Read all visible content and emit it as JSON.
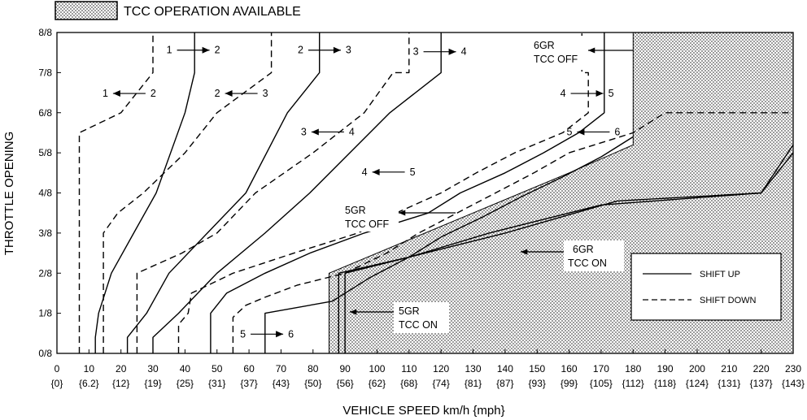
{
  "chart_data": {
    "type": "line",
    "title": "",
    "header_legend": "TCC OPERATION AVAILABLE",
    "xlabel": "VEHICLE SPEED  km/h {mph}",
    "ylabel": "THROTTLE OPENING",
    "xlim": [
      0,
      230
    ],
    "ylim": [
      0,
      1
    ],
    "x_ticks": [
      0,
      10,
      20,
      30,
      40,
      50,
      60,
      70,
      80,
      90,
      100,
      110,
      120,
      130,
      140,
      150,
      160,
      170,
      180,
      190,
      200,
      210,
      220,
      230
    ],
    "x_tick_labels": [
      "0",
      "10",
      "20",
      "30",
      "40",
      "50",
      "60",
      "70",
      "80",
      "90",
      "100",
      "110",
      "120",
      "130",
      "140",
      "150",
      "160",
      "170",
      "180",
      "190",
      "200",
      "210",
      "220",
      "230"
    ],
    "x_tick_mph": [
      "{0}",
      "{6.2}",
      "{12}",
      "{19}",
      "{25}",
      "{31}",
      "{37}",
      "{43}",
      "{50}",
      "{56}",
      "{62}",
      "{68}",
      "{74}",
      "{81}",
      "{87}",
      "{93}",
      "{99}",
      "{105}",
      "{112}",
      "{118}",
      "{124}",
      "{131}",
      "{137}",
      "{143}"
    ],
    "y_ticks": [
      0,
      0.125,
      0.25,
      0.375,
      0.5,
      0.625,
      0.75,
      0.875,
      1
    ],
    "y_tick_labels": [
      "0/8",
      "1/8",
      "2/8",
      "3/8",
      "4/8",
      "5/8",
      "6/8",
      "7/8",
      "8/8"
    ],
    "legend": {
      "position": "bottom-right",
      "entries": [
        {
          "label": "SHIFT UP",
          "style": "solid"
        },
        {
          "label": "SHIFT DOWN",
          "style": "dashed"
        }
      ]
    },
    "series": [
      {
        "label": "1-2 up",
        "style": "solid",
        "points": [
          [
            12,
            0
          ],
          [
            12,
            0.05
          ],
          [
            13,
            0.125
          ],
          [
            17,
            0.25
          ],
          [
            24,
            0.375
          ],
          [
            31,
            0.5
          ],
          [
            40,
            0.75
          ],
          [
            43,
            0.875
          ],
          [
            43,
            1
          ]
        ]
      },
      {
        "label": "2-1 down",
        "style": "dashed",
        "points": [
          [
            7,
            0
          ],
          [
            7,
            0.6875
          ],
          [
            20,
            0.75
          ],
          [
            30,
            0.875
          ],
          [
            30,
            1
          ]
        ]
      },
      {
        "label": "2-3 up",
        "style": "solid",
        "points": [
          [
            22,
            0
          ],
          [
            22,
            0.05
          ],
          [
            28,
            0.125
          ],
          [
            35,
            0.25
          ],
          [
            47,
            0.375
          ],
          [
            59,
            0.5
          ],
          [
            72,
            0.75
          ],
          [
            82,
            0.875
          ],
          [
            82,
            1
          ]
        ]
      },
      {
        "label": "3-2 down",
        "style": "dashed",
        "points": [
          [
            14.5,
            0
          ],
          [
            14.5,
            0.375
          ],
          [
            19,
            0.4375
          ],
          [
            27,
            0.5
          ],
          [
            40,
            0.625
          ],
          [
            50,
            0.75
          ],
          [
            67,
            0.875
          ],
          [
            67,
            1
          ]
        ]
      },
      {
        "label": "3-4 up",
        "style": "solid",
        "points": [
          [
            30,
            0
          ],
          [
            30,
            0.05
          ],
          [
            38,
            0.125
          ],
          [
            50,
            0.25
          ],
          [
            65,
            0.375
          ],
          [
            79,
            0.5
          ],
          [
            104,
            0.75
          ],
          [
            120,
            0.875
          ],
          [
            120,
            1
          ]
        ]
      },
      {
        "label": "4-3 down",
        "style": "dashed",
        "points": [
          [
            25,
            0
          ],
          [
            25,
            0.25
          ],
          [
            39,
            0.3125
          ],
          [
            50,
            0.375
          ],
          [
            62,
            0.5
          ],
          [
            80,
            0.625
          ],
          [
            96,
            0.75
          ],
          [
            105,
            0.875
          ],
          [
            110,
            0.875
          ],
          [
            110,
            1
          ]
        ]
      },
      {
        "label": "4-5 up",
        "style": "solid",
        "points": [
          [
            48,
            0
          ],
          [
            48,
            0.125
          ],
          [
            53,
            0.1875
          ],
          [
            65,
            0.25
          ],
          [
            79,
            0.3125
          ],
          [
            96,
            0.375
          ],
          [
            116,
            0.4375
          ],
          [
            126,
            0.5
          ],
          [
            140,
            0.5625
          ],
          [
            152,
            0.625
          ],
          [
            163,
            0.6875
          ],
          [
            171,
            0.75
          ],
          [
            171,
            1
          ]
        ]
      },
      {
        "label": "5-4 down",
        "style": "dashed",
        "points": [
          [
            38,
            0
          ],
          [
            38,
            0.09
          ],
          [
            41,
            0.125
          ],
          [
            42,
            0.1875
          ],
          [
            55,
            0.25
          ],
          [
            74,
            0.3125
          ],
          [
            94,
            0.375
          ],
          [
            106,
            0.4375
          ],
          [
            120,
            0.5
          ],
          [
            131,
            0.5625
          ],
          [
            143,
            0.625
          ],
          [
            158,
            0.6875
          ],
          [
            166,
            0.75
          ],
          [
            166,
            0.875
          ],
          [
            164,
            0.875
          ],
          [
            164,
            1
          ]
        ]
      },
      {
        "label": "5-6 up",
        "style": "solid",
        "points": [
          [
            65,
            0
          ],
          [
            65,
            0.125
          ],
          [
            86,
            0.1625
          ],
          [
            98,
            0.2375
          ],
          [
            110,
            0.3
          ],
          [
            120,
            0.3625
          ],
          [
            133,
            0.425
          ],
          [
            145,
            0.4875
          ],
          [
            158,
            0.55
          ],
          [
            170,
            0.6125
          ],
          [
            180,
            0.675
          ]
        ]
      },
      {
        "label": "6-5 down",
        "style": "dashed",
        "points": [
          [
            55,
            0
          ],
          [
            55,
            0.1125
          ],
          [
            59,
            0.15
          ],
          [
            65,
            0.175
          ],
          [
            75,
            0.2125
          ],
          [
            90,
            0.25
          ],
          [
            103,
            0.3125
          ],
          [
            113,
            0.375
          ],
          [
            125,
            0.4375
          ],
          [
            137,
            0.5
          ],
          [
            149,
            0.5625
          ],
          [
            160,
            0.625
          ],
          [
            180,
            0.6875
          ],
          [
            190,
            0.75
          ],
          [
            230,
            0.75
          ]
        ]
      },
      {
        "label": "5GR TCC ON",
        "style": "solid",
        "points": [
          [
            88,
            0
          ],
          [
            88,
            0.25
          ],
          [
            110,
            0.3
          ],
          [
            135,
            0.375
          ],
          [
            170,
            0.4625
          ],
          [
            220,
            0.5
          ],
          [
            230,
            0.625
          ]
        ]
      },
      {
        "label": "5GR TCC OFF",
        "style": "solid",
        "points": [
          [
            90,
            0
          ],
          [
            90,
            0.25
          ],
          [
            115,
            0.3125
          ],
          [
            140,
            0.375
          ],
          [
            175,
            0.475
          ],
          [
            220,
            0.5
          ],
          [
            230,
            0.65
          ]
        ]
      }
    ],
    "tcc_region": [
      [
        85,
        0
      ],
      [
        85,
        0.25
      ],
      [
        100,
        0.3125
      ],
      [
        130,
        0.4375
      ],
      [
        160,
        0.5625
      ],
      [
        180,
        0.65
      ],
      [
        180,
        1
      ],
      [
        230,
        1
      ],
      [
        230,
        0
      ]
    ],
    "annotations": [
      {
        "text": "1",
        "x": 37,
        "y": 0.945,
        "arrow": "right",
        "to": "2"
      },
      {
        "text": "2",
        "x": 78,
        "y": 0.945,
        "arrow": "right",
        "to": "3"
      },
      {
        "text": "3",
        "x": 114,
        "y": 0.94,
        "arrow": "right",
        "to": "4"
      },
      {
        "text": "1",
        "x": 17,
        "y": 0.81,
        "arrow": "left",
        "to": "2"
      },
      {
        "text": "2",
        "x": 52,
        "y": 0.81,
        "arrow": "left",
        "to": "3"
      },
      {
        "text": "3",
        "x": 79,
        "y": 0.69,
        "arrow": "left",
        "to": "4"
      },
      {
        "text": "4",
        "x": 98,
        "y": 0.565,
        "arrow": "left",
        "to": "5"
      },
      {
        "text": "4",
        "x": 160,
        "y": 0.81,
        "arrow": "right",
        "to": "5"
      },
      {
        "text": "5",
        "x": 162,
        "y": 0.69,
        "arrow": "left",
        "to": "6"
      },
      {
        "text": "5",
        "x": 60,
        "y": 0.06,
        "arrow": "right",
        "to": "6"
      }
    ],
    "labels": {
      "six_off": [
        "6GR",
        "TCC OFF"
      ],
      "five_off": [
        "5GR",
        "TCC OFF"
      ],
      "six_on": [
        "6GR",
        "TCC ON"
      ],
      "five_on": [
        "5GR",
        "TCC ON"
      ]
    }
  }
}
